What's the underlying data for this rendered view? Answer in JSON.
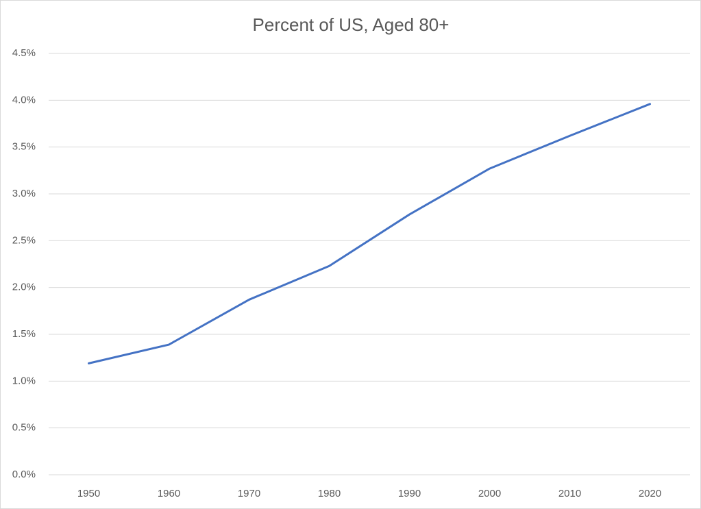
{
  "chart_data": {
    "type": "line",
    "title": "Percent of US, Aged 80+",
    "categories": [
      "1950",
      "1960",
      "1970",
      "1980",
      "1990",
      "2000",
      "2010",
      "2020"
    ],
    "series": [
      {
        "name": "Percent of US, Aged 80+",
        "color": "#4472c4",
        "values": [
          1.19,
          1.39,
          1.87,
          2.23,
          2.78,
          3.27,
          3.62,
          3.96
        ]
      }
    ],
    "ylim": [
      0,
      4.5
    ],
    "yticks": [
      {
        "value": 0,
        "label": "0.0%"
      },
      {
        "value": 0.5,
        "label": "0.5%"
      },
      {
        "value": 1,
        "label": "1.0%"
      },
      {
        "value": 1.5,
        "label": "1.5%"
      },
      {
        "value": 2,
        "label": "2.0%"
      },
      {
        "value": 2.5,
        "label": "2.5%"
      },
      {
        "value": 3,
        "label": "3.0%"
      },
      {
        "value": 3.5,
        "label": "3.5%"
      },
      {
        "value": 4,
        "label": "4.0%"
      },
      {
        "value": 4.5,
        "label": "4.5%"
      }
    ],
    "grid": true
  }
}
